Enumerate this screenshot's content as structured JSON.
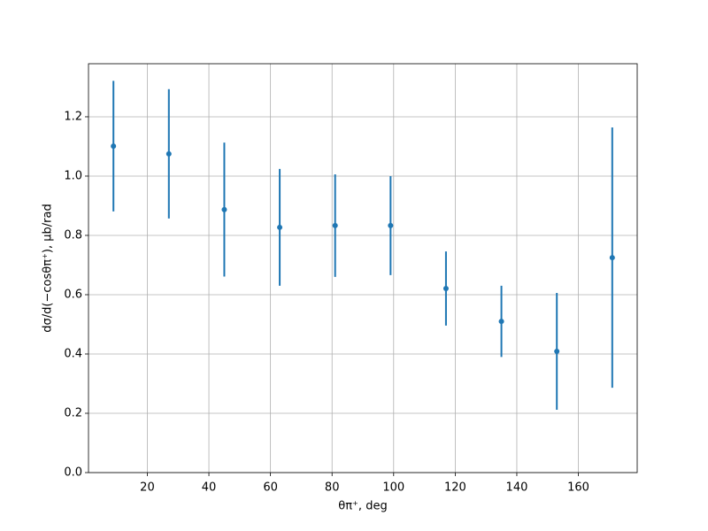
{
  "chart_data": {
    "type": "scatter",
    "x_label": "θπ⁺, deg",
    "y_label": "dσ/d(−cosθπ⁺), μb/rad",
    "x": [
      9,
      27,
      45,
      63,
      81,
      99,
      117,
      135,
      153,
      171
    ],
    "values": [
      1.101,
      1.075,
      0.887,
      0.827,
      0.833,
      0.833,
      0.621,
      0.51,
      0.409,
      0.725
    ],
    "errors": [
      0.22,
      0.218,
      0.226,
      0.197,
      0.173,
      0.167,
      0.125,
      0.12,
      0.197,
      0.439
    ],
    "color": "#1f77b4",
    "grid": true,
    "xlim": [
      0.9,
      179.1
    ],
    "xticks": [
      20,
      40,
      60,
      80,
      100,
      120,
      140,
      160
    ],
    "ylim": [
      0,
      1.379
    ],
    "yticks": [
      {
        "value": 0,
        "label": "0.0"
      },
      0.2,
      0.4,
      0.6,
      0.8,
      {
        "value": 1,
        "label": "1.0"
      },
      1.2
    ]
  }
}
